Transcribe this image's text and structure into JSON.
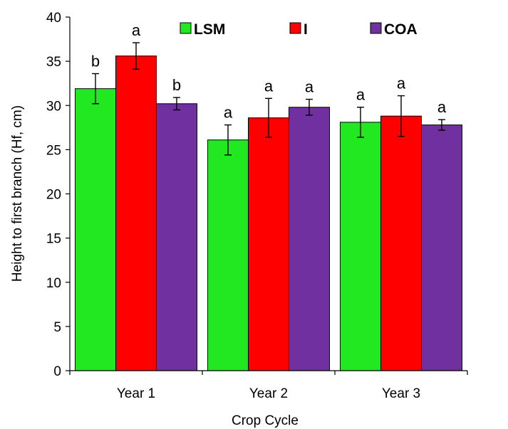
{
  "chart_data": {
    "type": "bar",
    "xlabel": "Crop Cycle",
    "ylabel": "Height to first branch (Hf, cm)",
    "ylim": [
      0,
      40
    ],
    "yticks": [
      0,
      5,
      10,
      15,
      20,
      25,
      30,
      35,
      40
    ],
    "categories": [
      "Year 1",
      "Year 2",
      "Year 3"
    ],
    "series": [
      {
        "name": "LSM",
        "color": "#22e822",
        "values": [
          31.9,
          26.1,
          28.1
        ],
        "errors": [
          1.7,
          1.7,
          1.7
        ],
        "letters": [
          "b",
          "a",
          "a"
        ]
      },
      {
        "name": "I",
        "color": "#ff0000",
        "values": [
          35.6,
          28.6,
          28.8
        ],
        "errors": [
          1.5,
          2.2,
          2.3
        ],
        "letters": [
          "a",
          "a",
          "a"
        ]
      },
      {
        "name": "COA",
        "color": "#7030a0",
        "values": [
          30.2,
          29.8,
          27.8
        ],
        "errors": [
          0.7,
          0.9,
          0.6
        ],
        "letters": [
          "b",
          "a",
          "a"
        ]
      }
    ],
    "legend_position": "top"
  }
}
